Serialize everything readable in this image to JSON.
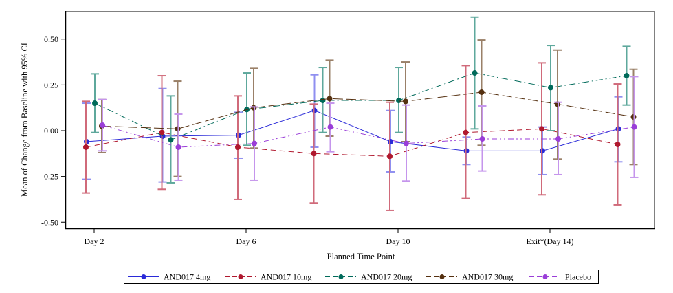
{
  "chart_data": {
    "type": "line",
    "title": "",
    "xlabel": "Planned Time Point",
    "ylabel": "Mean of Change from Baseline with 95% CI",
    "x_tick_labels": [
      "Day 2",
      "Day 6",
      "Day 10",
      "Exit*(Day 14)"
    ],
    "x_positions": [
      "Day 2",
      "Day 4",
      "Day 6",
      "Day 8",
      "Day 10",
      "Day 12",
      "Exit*(Day 14)",
      "Day 16"
    ],
    "x_labeled_indices": [
      0,
      2,
      4,
      6
    ],
    "ylim": [
      -0.53,
      0.66
    ],
    "y_ticks": [
      -0.5,
      -0.25,
      0.0,
      0.25,
      0.5
    ],
    "y_tick_labels": [
      "-0.50",
      "-0.25",
      "0.00",
      "0.25",
      "0.50"
    ],
    "grid": false,
    "legend_position": "bottom",
    "series": [
      {
        "name": "AND017 4mg",
        "color": "#2a2ad8",
        "ci_color": "#8f8ff0",
        "dash": "solid",
        "values": [
          -0.06,
          -0.03,
          -0.025,
          0.11,
          -0.06,
          -0.11,
          -0.11,
          0.01
        ],
        "ci_low": [
          -0.265,
          -0.28,
          -0.15,
          -0.09,
          -0.225,
          -0.185,
          -0.24,
          -0.17
        ],
        "ci_high": [
          0.15,
          0.23,
          0.1,
          0.305,
          0.11,
          -0.035,
          0.02,
          0.185
        ]
      },
      {
        "name": "AND017 10mg",
        "color": "#b0182e",
        "ci_color": "#d06a7a",
        "dash": "dashed",
        "values": [
          -0.09,
          -0.01,
          -0.09,
          -0.125,
          -0.14,
          -0.01,
          0.01,
          -0.075
        ],
        "ci_low": [
          -0.34,
          -0.32,
          -0.375,
          -0.395,
          -0.435,
          -0.37,
          -0.35,
          -0.405
        ],
        "ci_high": [
          0.16,
          0.3,
          0.19,
          0.145,
          0.155,
          0.355,
          0.37,
          0.255
        ]
      },
      {
        "name": "AND017 20mg",
        "color": "#006a5a",
        "ci_color": "#5ea89c",
        "dash": "dashdot",
        "values": [
          0.15,
          -0.05,
          0.115,
          0.165,
          0.165,
          0.315,
          0.235,
          0.3
        ],
        "ci_low": [
          -0.01,
          -0.285,
          -0.08,
          -0.01,
          -0.01,
          0.01,
          0.0,
          0.14
        ],
        "ci_high": [
          0.31,
          0.19,
          0.315,
          0.345,
          0.345,
          0.62,
          0.465,
          0.46
        ]
      },
      {
        "name": "AND017 30mg",
        "color": "#553010",
        "ci_color": "#9a8068",
        "dash": "longdash",
        "values": [
          0.025,
          0.01,
          0.125,
          0.175,
          0.16,
          0.21,
          0.145,
          0.075
        ],
        "ci_low": [
          -0.12,
          -0.25,
          -0.095,
          -0.03,
          -0.06,
          -0.08,
          -0.155,
          -0.185
        ],
        "ci_high": [
          0.17,
          0.27,
          0.34,
          0.385,
          0.375,
          0.495,
          0.44,
          0.335
        ]
      },
      {
        "name": "Placebo",
        "color": "#9a3ed8",
        "ci_color": "#c595ec",
        "dash": "dashdotdot",
        "values": [
          0.03,
          -0.09,
          -0.07,
          0.02,
          -0.07,
          -0.045,
          -0.045,
          0.02
        ],
        "ci_low": [
          -0.11,
          -0.27,
          -0.27,
          -0.115,
          -0.275,
          -0.22,
          -0.24,
          -0.255
        ],
        "ci_high": [
          0.17,
          0.09,
          0.13,
          0.15,
          0.14,
          0.135,
          0.155,
          0.295
        ]
      }
    ]
  }
}
